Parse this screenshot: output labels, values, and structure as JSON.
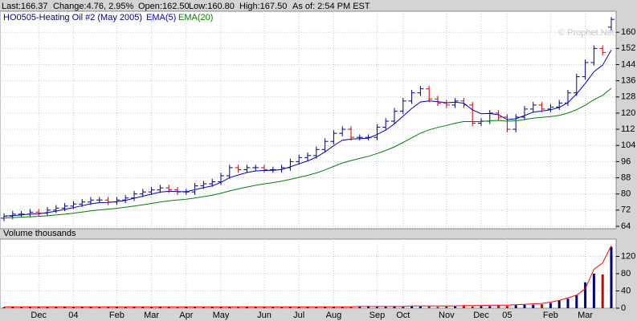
{
  "header": {
    "items": [
      "Last:166.37",
      "Change:4.76, 2.95%",
      "Open:162.50",
      "Low:160.80",
      "High:167.50",
      "As of: 2:54 PM EST"
    ]
  },
  "watermark": "© Prophet.Net",
  "chart_data": [
    {
      "type": "ohlc",
      "title": "HO0505-Heating Oil #2 (May 2005)",
      "up_color": "#000080",
      "down_color": "#cc0000",
      "open": [
        68,
        69,
        70,
        70,
        71,
        70.5,
        72,
        73,
        74,
        75,
        76,
        77,
        77,
        76,
        77,
        78,
        80,
        81,
        82,
        83,
        82,
        81,
        81,
        84,
        85,
        86,
        89,
        93,
        92,
        93,
        93,
        92,
        92,
        93,
        96,
        98,
        99,
        102,
        106,
        110,
        112,
        108,
        108,
        108,
        113,
        116,
        121,
        126,
        130,
        132,
        127,
        125,
        124,
        126,
        124,
        115,
        116,
        120,
        118,
        112,
        118,
        122,
        124,
        122,
        123,
        125,
        130,
        138,
        145,
        152,
        162.5
      ],
      "high": [
        70.5,
        71.5,
        71.5,
        72.5,
        72.5,
        73.5,
        74.5,
        75.5,
        76.5,
        77.5,
        78.5,
        78.5,
        78.5,
        78.5,
        79.5,
        81.5,
        82.5,
        83.5,
        84.5,
        84.5,
        83.5,
        82.5,
        85.5,
        86.5,
        87.5,
        90.5,
        94.5,
        94.5,
        94.5,
        94.5,
        94.5,
        93.5,
        94.5,
        97.5,
        99.5,
        100.5,
        103.5,
        107.5,
        111.5,
        113.5,
        113.5,
        109.5,
        109.5,
        114.5,
        117.5,
        122.5,
        127.5,
        131.5,
        133.5,
        133.5,
        128.5,
        126.5,
        127.5,
        127.5,
        125.5,
        117.5,
        121.5,
        121.5,
        119.5,
        119.5,
        123.5,
        125.5,
        125.5,
        124.5,
        126.5,
        131.5,
        139.5,
        146.5,
        153.5,
        153.5,
        167.5
      ],
      "low": [
        66.5,
        67.5,
        68.5,
        68.5,
        69,
        69,
        70.5,
        71.5,
        72.5,
        73.5,
        74.5,
        75.5,
        74.5,
        74.5,
        75.5,
        76.5,
        78.5,
        79.5,
        80.5,
        80.5,
        79.5,
        79.5,
        79.5,
        82.5,
        83.5,
        84.5,
        87.5,
        90.5,
        90.5,
        91.5,
        90.5,
        90.5,
        90.5,
        91.5,
        94.5,
        96.5,
        97.5,
        100.5,
        104.5,
        108.5,
        106.5,
        106.5,
        106.5,
        106.5,
        111.5,
        114.5,
        119.5,
        124.5,
        128.5,
        125.5,
        123.5,
        122.5,
        122.5,
        122.5,
        113.5,
        113.5,
        114.5,
        116.5,
        110.5,
        110.5,
        116.5,
        120.5,
        120.5,
        120.5,
        121.5,
        123.5,
        128.5,
        136.5,
        143.5,
        148.5,
        160.8
      ],
      "close": [
        69,
        70,
        70,
        71,
        70.5,
        72,
        73,
        74,
        75,
        76,
        77,
        77,
        76,
        77,
        78,
        80,
        81,
        82,
        83,
        82,
        81,
        81,
        84,
        85,
        86,
        89,
        93,
        92,
        93,
        93,
        92,
        92,
        93,
        96,
        98,
        99,
        102,
        106,
        110,
        112,
        108,
        108,
        108,
        113,
        116,
        121,
        126,
        130,
        132,
        127,
        125,
        124,
        126,
        124,
        115,
        116,
        120,
        118,
        112,
        118,
        122,
        124,
        122,
        123,
        125,
        130,
        138,
        145,
        152,
        150,
        166.37
      ],
      "series": [
        {
          "name": "EMA(5)",
          "color": "#0000cc",
          "values": [
            69,
            69.3,
            69.6,
            70.1,
            70.2,
            70.8,
            71.5,
            72.4,
            73.2,
            74.2,
            75.1,
            75.7,
            75.8,
            76.2,
            76.8,
            77.9,
            78.9,
            79.9,
            80.9,
            81.3,
            81.2,
            81.1,
            82.1,
            83.1,
            84,
            85.7,
            88.1,
            89.4,
            90.6,
            91.4,
            91.6,
            91.7,
            92.1,
            93.4,
            94.9,
            96.3,
            98.2,
            100.8,
            103.9,
            106.6,
            107.1,
            107.4,
            107.6,
            109.4,
            111.6,
            114.7,
            118.5,
            122.3,
            125.5,
            126,
            125.7,
            125.1,
            125.4,
            124.9,
            121.6,
            119.7,
            119.8,
            119.2,
            116.8,
            117.2,
            118.8,
            120.5,
            121,
            121.7,
            122.8,
            125.2,
            129.5,
            134.7,
            140.5,
            143.7,
            151.2
          ]
        },
        {
          "name": "EMA(20)",
          "color": "#008000",
          "values": [
            68.1,
            68.3,
            68.5,
            68.7,
            68.9,
            69.2,
            69.6,
            70,
            70.5,
            71,
            71.6,
            72.1,
            72.5,
            72.9,
            73.4,
            74,
            74.6,
            75.3,
            76,
            76.6,
            77,
            77.4,
            78,
            78.7,
            79.4,
            80.3,
            81.5,
            82.5,
            83.4,
            84.3,
            85,
            85.6,
            86.3,
            87.2,
            88.2,
            89.2,
            90.4,
            91.9,
            93.6,
            95.3,
            96.5,
            97.6,
            98.6,
            100,
            101.5,
            103.3,
            105.5,
            107.8,
            110.1,
            111.7,
            112.9,
            113.9,
            115,
            115.8,
            115.8,
            115.8,
            116.2,
            116.4,
            116,
            116.2,
            116.8,
            117.5,
            117.9,
            118.3,
            118.9,
            120,
            121.7,
            123.9,
            126.6,
            128.8,
            132.3
          ]
        }
      ],
      "ylim": [
        62.8,
        170.4
      ],
      "yticks": [
        64,
        72,
        80,
        88,
        96,
        104,
        112,
        120,
        128,
        136,
        144,
        152,
        160
      ],
      "grid": true
    },
    {
      "type": "bar",
      "title": "Volume thousands",
      "categories": [
        null,
        null,
        null,
        null,
        "Dec",
        null,
        null,
        null,
        "04",
        null,
        null,
        null,
        null,
        "Feb",
        null,
        null,
        null,
        "Mar",
        null,
        null,
        null,
        "Apr",
        null,
        null,
        null,
        "May",
        null,
        null,
        null,
        null,
        "Jun",
        null,
        null,
        null,
        "Jul",
        null,
        null,
        null,
        "Aug",
        null,
        null,
        null,
        null,
        "Sep",
        null,
        null,
        "Oct",
        null,
        null,
        null,
        null,
        "Nov",
        null,
        null,
        null,
        "Dec",
        null,
        null,
        "05",
        null,
        null,
        null,
        null,
        "Feb",
        null,
        null,
        null,
        "Mar",
        null,
        null,
        null
      ],
      "values": [
        2,
        3,
        2,
        3,
        3,
        2,
        3,
        3,
        2,
        3,
        3,
        2,
        3,
        3,
        2,
        3,
        3,
        2,
        3,
        3,
        2,
        3,
        3,
        2,
        3,
        3,
        3,
        2,
        3,
        3,
        3,
        3,
        2,
        3,
        3,
        3,
        2,
        3,
        3,
        3,
        3,
        3,
        4,
        3,
        4,
        4,
        3,
        4,
        4,
        4,
        3,
        4,
        4,
        5,
        4,
        5,
        5,
        6,
        5,
        7,
        8,
        8,
        9,
        12,
        18,
        22,
        30,
        60,
        80,
        78,
        142
      ],
      "series": [
        {
          "color": "#ff0000",
          "values": [
            3,
            3,
            3,
            3,
            3,
            3,
            3,
            3,
            3,
            3,
            3,
            3,
            3,
            3,
            3,
            3,
            3,
            3,
            3,
            3,
            3,
            3,
            3,
            3,
            3,
            3,
            3,
            3,
            3,
            3,
            3,
            3,
            3,
            3,
            3,
            3,
            3,
            3,
            3,
            3,
            3,
            4,
            4,
            4,
            4,
            4,
            4,
            5,
            5,
            5,
            5,
            5,
            5,
            6,
            6,
            6,
            7,
            7,
            7,
            8,
            9,
            10,
            11,
            14,
            18,
            24,
            30,
            45,
            90,
            105,
            145
          ]
        }
      ],
      "ylim": [
        0,
        160
      ],
      "yticks": [
        0,
        40,
        80,
        120
      ],
      "grid": true
    }
  ]
}
